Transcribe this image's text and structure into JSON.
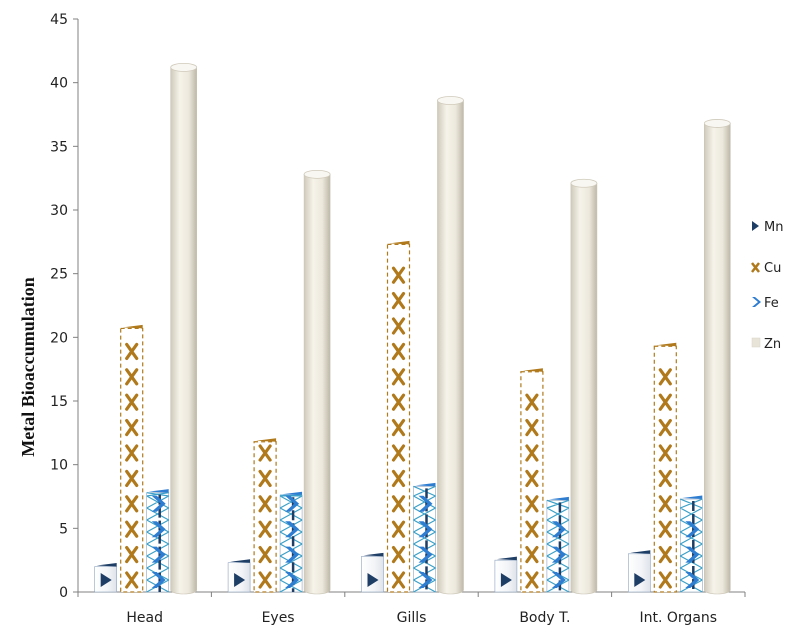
{
  "chart_data": {
    "type": "bar",
    "title": "",
    "xlabel": "",
    "ylabel": "Metal  Bioaccumulation",
    "ylim": [
      0,
      45
    ],
    "yticks": [
      0,
      5,
      10,
      15,
      20,
      25,
      30,
      35,
      40,
      45
    ],
    "grid": false,
    "legend_position": "right",
    "categories": [
      "Head",
      "Eyes",
      "Gills",
      "Body T.",
      "Int. Organs"
    ],
    "series": [
      {
        "name": "Mn",
        "values": [
          2.0,
          2.3,
          2.8,
          2.5,
          3.0
        ],
        "color": "#1f3e66",
        "marker": "triangle"
      },
      {
        "name": "Cu",
        "values": [
          20.7,
          11.8,
          27.3,
          17.3,
          19.3
        ],
        "color": "#b07a1c",
        "marker": "x"
      },
      {
        "name": "Fe",
        "values": [
          7.8,
          7.6,
          8.3,
          7.2,
          7.3
        ],
        "color": "#2e7dd1",
        "marker": "chevron"
      },
      {
        "name": "Zn",
        "values": [
          41.2,
          32.8,
          38.6,
          32.1,
          36.8
        ],
        "color": "#e8e4d8",
        "marker": "cylinder"
      }
    ]
  }
}
